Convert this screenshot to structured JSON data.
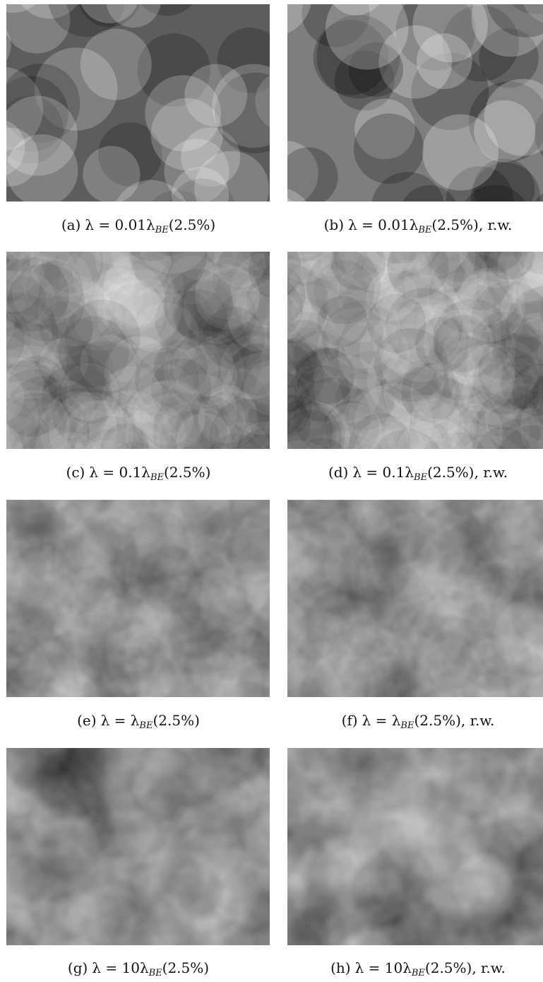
{
  "figure": {
    "panels": [
      {
        "label": "(a)",
        "prefix": "λ = 0.01λ",
        "sub": "BE",
        "suffix": "(2.5%)",
        "tail": "",
        "base": "#5d5d5d",
        "discs": 36,
        "opacity": 0.22,
        "rmin": 38,
        "rmax": 60,
        "blur": 0
      },
      {
        "label": "(b)",
        "prefix": "λ = 0.01λ",
        "sub": "BE",
        "suffix": "(2.5%)",
        "tail": ", r.w.",
        "base": "#7e7e7e",
        "discs": 36,
        "opacity": 0.25,
        "rmin": 38,
        "rmax": 60,
        "blur": 0
      },
      {
        "label": "(c)",
        "prefix": "λ = 0.1λ",
        "sub": "BE",
        "suffix": "(2.5%)",
        "tail": "",
        "base": "#7a7a7a",
        "discs": 220,
        "opacity": 0.09,
        "rmin": 34,
        "rmax": 58,
        "blur": 0.3
      },
      {
        "label": "(d)",
        "prefix": "λ = 0.1λ",
        "sub": "BE",
        "suffix": "(2.5%)",
        "tail": ", r.w.",
        "base": "#858585",
        "discs": 220,
        "opacity": 0.1,
        "rmin": 34,
        "rmax": 58,
        "blur": 0.3
      },
      {
        "label": "(e)",
        "prefix": "λ = λ",
        "sub": "BE",
        "suffix": "(2.5%)",
        "tail": "",
        "base": "#7f7f7f",
        "discs": 900,
        "opacity": 0.05,
        "rmin": 30,
        "rmax": 55,
        "blur": 2.5
      },
      {
        "label": "(f)",
        "prefix": "λ = λ",
        "sub": "BE",
        "suffix": "(2.5%)",
        "tail": ", r.w.",
        "base": "#7d7d7d",
        "discs": 900,
        "opacity": 0.05,
        "rmin": 30,
        "rmax": 55,
        "blur": 2.5
      },
      {
        "label": "(g)",
        "prefix": "λ = 10λ",
        "sub": "BE",
        "suffix": "(2.5%)",
        "tail": "",
        "base": "#858585",
        "discs": 900,
        "opacity": 0.055,
        "rmin": 28,
        "rmax": 52,
        "blur": 3.5
      },
      {
        "label": "(h)",
        "prefix": "λ = 10λ",
        "sub": "BE",
        "suffix": "(2.5%)",
        "tail": ", r.w.",
        "base": "#868686",
        "discs": 900,
        "opacity": 0.055,
        "rmin": 28,
        "rmax": 52,
        "blur": 3.5
      }
    ]
  }
}
